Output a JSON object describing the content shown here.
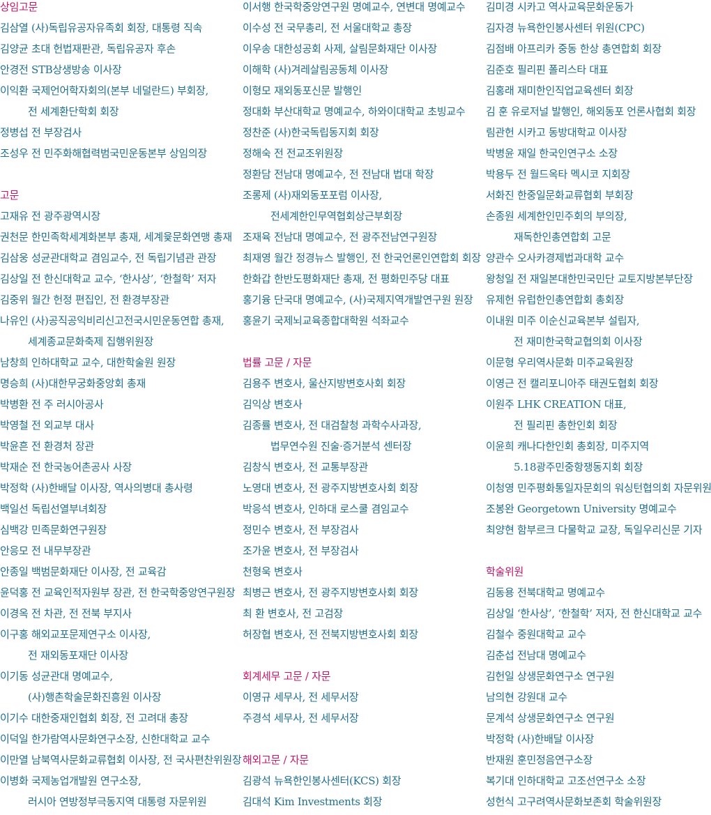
{
  "columns": [
    {
      "sections": [
        {
          "heading": "상임고문",
          "entries": [
            [
              "김삼열 (사)독립유공자유족회 회장, 대통령 직속"
            ],
            [
              "김양균 초대 헌법재판관, 독립유공자 후손"
            ],
            [
              "안경전 STB상생방송 이사장"
            ],
            [
              "이익환 국제언어학자회의(본부 네덜란드) 부회장,",
              "전 세계환단학회 회장"
            ],
            [
              "정병섭 전 부장검사"
            ],
            [
              "조성우 전 민주화해협력범국민운동본부 상임의장"
            ]
          ]
        },
        {
          "heading": "고문",
          "entries": [
            [
              "고재유 전 광주광역시장"
            ],
            [
              "권천문 한민족학세계화본부 총재, 세계윷문화연맹 총재"
            ],
            [
              "김삼웅 성균관대학교 겸임교수, 전 독립기념관 관장"
            ],
            [
              "김상일 전 한신대학교 교수, ‘한사상’, ‘한철학’ 저자"
            ],
            [
              "김중위 월간 헌정 편집인, 전 환경부장관"
            ],
            [
              "나유인 (사)공직공익비리신고전국시민운동연합 총재,",
              "세계종교문화축제 집행위원장"
            ],
            [
              "남창희 인하대학교 교수, 대한학술원 원장"
            ],
            [
              "명승희 (사)대한무궁화중앙회 총재"
            ],
            [
              "박병환 전 주 러시아공사"
            ],
            [
              "박영철 전 외교부 대사"
            ],
            [
              "박윤흔 전 환경처 장관"
            ],
            [
              "박재순 전 한국농어촌공사 사장"
            ],
            [
              "박정학 (사)한배달 이사장, 역사의병대 총사령"
            ],
            [
              "백일선 독립선열부녀회장"
            ],
            [
              "심백강 민족문화연구원장"
            ],
            [
              "안응모 전 내무부장관"
            ],
            [
              "안종일 백범문화재단 이사장, 전 교육감"
            ],
            [
              "윤덕홍 전 교육인적자원부 장관, 전 한국학중앙연구원장"
            ],
            [
              "이경옥 전 차관, 전 전북 부지사"
            ],
            [
              "이구홍 해외교포문제연구소 이사장,",
              "전 재외동포재단 이사장"
            ],
            [
              "이기동 성균관대 명예교수,",
              "(사)행촌학술문화진흥원 이사장"
            ],
            [
              "이기수 대한중재인협회 회장, 전 고려대 총장"
            ],
            [
              "이덕일 한가람역사문화연구소장, 신한대학교 교수"
            ],
            [
              "이만열 남북역사문화교류협회 이사장, 전 국사편찬위원장"
            ],
            [
              "이병화 국제농업개발원 연구소장,",
              "러시아 연방정부극동지역 대통령 자문위원"
            ]
          ]
        }
      ]
    },
    {
      "sections": [
        {
          "entries": [
            [
              "이서행 한국학중앙연구원 명예교수, 연변대 명예교수"
            ],
            [
              "이수성 전 국무총리, 전 서울대학교 총장"
            ],
            [
              "이우송 대한성공회 사제, 살림문화재단 이사장"
            ],
            [
              "이해학 (사)겨레살림공동체 이사장"
            ],
            [
              "이형모 재외동포신문 발행인"
            ],
            [
              "정대화 부산대학교 명예교수, 하와이대학교 초빙교수"
            ],
            [
              "정찬준 (사)한국독립동지회 회장"
            ],
            [
              "정해숙 전 전교조위원장"
            ],
            [
              "정환담 전남대 명예교수, 전 전남대 법대 학장"
            ],
            [
              "조롱제 (사)재외동포포럼 이사장,",
              "전세계한인무역협회상근부회장"
            ],
            [
              "조재육 전남대 명예교수, 전 광주전남연구원장"
            ],
            [
              "최재영 월간 정경뉴스 발행인, 전 한국언론인연합회 회장"
            ],
            [
              "한화갑 한반도평화재단 총재, 전 평화민주당 대표"
            ],
            [
              "홍기융 단국대 명예교수, (사)국제지역개발연구원 원장"
            ],
            [
              "홍윤기 국제뇌교육종합대학원 석좌교수"
            ]
          ]
        },
        {
          "heading": "법률 고문 /  자문",
          "entries": [
            [
              "김용주 변호사, 울산지방변호사회 회장"
            ],
            [
              "김익상 변호사"
            ],
            [
              "김종률 변호사, 전 대검찰청 과학수사과장,",
              "법무연수원 진술·증거분석 센터장"
            ],
            [
              "김창식 변호사, 전 교통부장관"
            ],
            [
              "노영대 변호사, 전 광주지방변호사회 회장"
            ],
            [
              "박응석 변호사, 인하대 로스쿨 겸임교수"
            ],
            [
              "정민수 변호사, 전 부장검사"
            ],
            [
              "조가윤 변호사, 전 부장검사"
            ],
            [
              "천형욱 변호사"
            ],
            [
              "최병근 변호사, 전 광주지방변호사회 회장"
            ],
            [
              "최    환 변호사, 전 고검장"
            ],
            [
              "허장협 변호사, 전 전북지방변호사회 회장"
            ]
          ]
        },
        {
          "heading": "회계세무 고문 /  자문",
          "entries": [
            [
              "이영규 세무사, 전 세무서장"
            ],
            [
              "주경석 세무사, 전 세무서장"
            ]
          ]
        },
        {
          "heading": "해외고문 /  자문",
          "entries": [
            [
              "김광석 뉴욕한인봉사센터(KCS) 회장"
            ],
            [
              "김대석 Kim Investments 회장"
            ]
          ]
        }
      ]
    },
    {
      "sections": [
        {
          "entries": [
            [
              "김미경 시카고 역사교육문화운동가"
            ],
            [
              "김자경 뉴욕한인봉사센터 위원(CPC)"
            ],
            [
              "김점배 아프리카 중동 한상 총연합회 회장"
            ],
            [
              "김준호 필리핀 폴리스타 대표"
            ],
            [
              "김홍래 재미한인직업교육센터 회장"
            ],
            [
              "김    훈 유로저널 발행인, 해외동포 언론사협회 회장"
            ],
            [
              "림관헌 시카고 동방대학교 이사장"
            ],
            [
              "박병윤 재일 한국인연구소 소장"
            ],
            [
              "박용두 전 월드옥타 멕시코 지회장"
            ],
            [
              "서화진 한중일문화교류협회 부회장"
            ],
            [
              "손종원 세계한인민주회의 부의장,",
              "재독한인총연합회 고문"
            ],
            [
              "양관수 오사카경제법과대학 교수"
            ],
            [
              "왕청일 전 재일본대한민국민단 교토지방본부단장"
            ],
            [
              "유제헌 유럽한인총연합회 총회장"
            ],
            [
              "이내원 미주 이순신교육본부 설립자,",
              "전 재미한국학교협의회 이사장"
            ],
            [
              "이문형 우리역사문화 미주교육원장"
            ],
            [
              "이영근 전 캘리포니아주 태권도협회 회장"
            ],
            [
              "이원주 LHK CREATION 대표,",
              "전 필리핀 총한인회 회장"
            ],
            [
              "이윤희 캐나다한인회 총회장, 미주지역",
              "5.18광주민중항쟁동지회 회장"
            ],
            [
              "이청영 민주평화통일자문회의 워싱턴협의회 자문위원"
            ],
            [
              "조봉완 Georgetown University 명예교수"
            ],
            [
              "최양현 함부르크 다물학교 교장, 독일우리신문 기자"
            ]
          ]
        },
        {
          "heading": "학술위원",
          "entries": [
            [
              "김동용 전북대학교 명예교수"
            ],
            [
              "김상일 ‘한사상’, ‘한철학’ 저자, 전 한신대학교 교수"
            ],
            [
              "김철수 중원대학교 교수"
            ],
            [
              "김춘섭 전남대 명예교수"
            ],
            [
              "김헌일 상생문화연구소 연구원"
            ],
            [
              "남의현 강원대 교수"
            ],
            [
              "문계석 상생문화연구소 연구원"
            ],
            [
              "박정학 (사)한배달 이사장"
            ],
            [
              "반재원 훈민정음연구소장"
            ],
            [
              "복기대 인하대학교 고조선연구소 소장"
            ],
            [
              "성헌식 고구려역사문화보존회 학술위원장"
            ]
          ]
        }
      ]
    }
  ]
}
